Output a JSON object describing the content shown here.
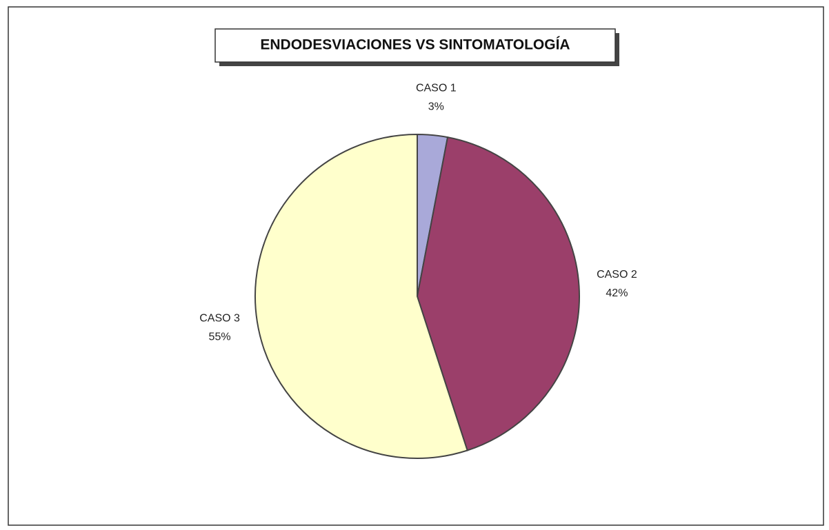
{
  "chart_data": {
    "type": "pie",
    "title": "ENDODESVIACIONES VS SINTOMATOLOGÍA",
    "categories": [
      "CASO 1",
      "CASO 2",
      "CASO 3"
    ],
    "values": [
      3,
      42,
      55
    ],
    "value_labels": [
      "3%",
      "42%",
      "55%"
    ],
    "colors": [
      "#a9a9d9",
      "#9b3f6a",
      "#ffffcc"
    ]
  }
}
